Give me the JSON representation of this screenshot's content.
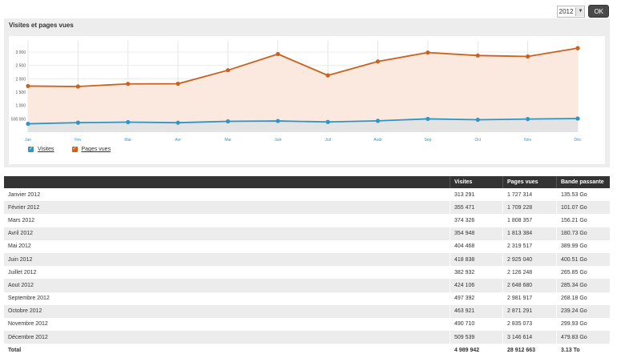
{
  "controls": {
    "year": "2012",
    "ok_label": "OK"
  },
  "chart_title": "Visites et pages vues",
  "legend": {
    "visits_label": "Visites",
    "pages_label": "Pages vues"
  },
  "colors": {
    "visits": "#2f95c4",
    "pages": "#c8621e",
    "pages_fill": "#fbe9df",
    "visits_fill": "#e3e3e3",
    "header_bg": "#333333"
  },
  "chart_data": {
    "type": "line",
    "categories": [
      "Jan",
      "Fév",
      "Mar",
      "Avr",
      "Mai",
      "Juin",
      "Juil",
      "Août",
      "Sep",
      "Oct",
      "Nov",
      "Déc"
    ],
    "y_tick_labels": [
      "3 000",
      "2 500",
      "2 000",
      "1 500",
      "1 000",
      "500 000"
    ],
    "series": [
      {
        "name": "Visites",
        "values": [
          313291,
          355471,
          374326,
          354948,
          404468,
          418838,
          382932,
          424106,
          497392,
          463921,
          490710,
          509539
        ]
      },
      {
        "name": "Pages vues",
        "values": [
          1727314,
          1709228,
          1808357,
          1813384,
          2319517,
          2925040,
          2126248,
          2648680,
          2981917,
          2871291,
          2835073,
          3146614
        ]
      }
    ],
    "ylim": [
      0,
      3300000
    ],
    "grid": true,
    "legend_position": "bottom-left"
  },
  "table": {
    "headers": [
      "",
      "Visites",
      "Pages vues",
      "Bande passante"
    ],
    "rows": [
      [
        "Janvier 2012",
        "313 291",
        "1 727 314",
        "135.53 Go"
      ],
      [
        "Février 2012",
        "355 471",
        "1 709 228",
        "101.07 Go"
      ],
      [
        "Mars 2012",
        "374 326",
        "1 808 357",
        "156.21 Go"
      ],
      [
        "Avril 2012",
        "354 948",
        "1 813 384",
        "180.73 Go"
      ],
      [
        "Mai 2012",
        "404 468",
        "2 319 517",
        "389.99 Go"
      ],
      [
        "Juin 2012",
        "418 838",
        "2 925 040",
        "400.51 Go"
      ],
      [
        "Juillet 2012",
        "382 932",
        "2 126 248",
        "265.85 Go"
      ],
      [
        "Aout 2012",
        "424 106",
        "2 648 680",
        "285.34 Go"
      ],
      [
        "Septembre 2012",
        "497 392",
        "2 981 917",
        "268.18 Go"
      ],
      [
        "Octobre 2012",
        "463 921",
        "2 871 291",
        "239.24 Go"
      ],
      [
        "Novembre 2012",
        "490 710",
        "2 835 073",
        "299.93 Go"
      ],
      [
        "Décembre 2012",
        "509 539",
        "3 146 614",
        "479.83 Go"
      ]
    ],
    "total": [
      "Total",
      "4 989 942",
      "28 912 663",
      "3.13 To"
    ]
  }
}
